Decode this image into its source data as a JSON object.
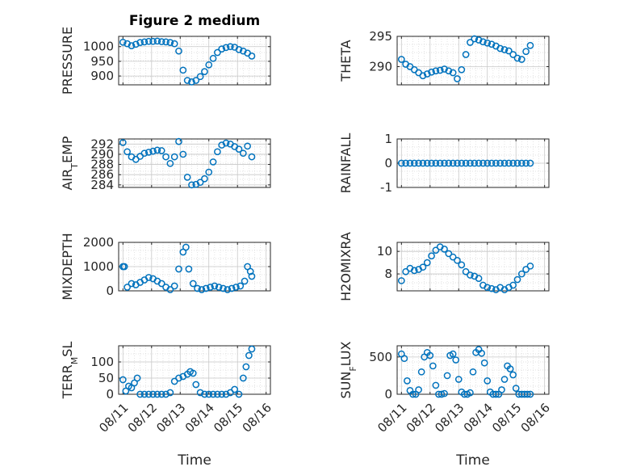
{
  "chart_data": [
    {
      "type": "scatter",
      "title": "Figure 2 medium",
      "ylabel": "PRESSURE",
      "ylim": [
        870,
        1035
      ],
      "yticks": [
        "900",
        "950",
        "1000"
      ],
      "xticks": [],
      "xlabel": "",
      "grid": "on",
      "series": [
        {
          "x": [
            11.0,
            11.15,
            11.3,
            11.45,
            11.6,
            11.75,
            11.9,
            12.05,
            12.2,
            12.35,
            12.5,
            12.65,
            12.8,
            12.95,
            13.1,
            13.25,
            13.4,
            13.55,
            13.7,
            13.85,
            14.0,
            14.15,
            14.3,
            14.45,
            14.6,
            14.75,
            14.9,
            15.05,
            15.2,
            15.35,
            15.5
          ],
          "y": [
            1015,
            1010,
            1003,
            1008,
            1014,
            1016,
            1018,
            1018,
            1019,
            1017,
            1016,
            1014,
            1010,
            985,
            920,
            885,
            880,
            885,
            898,
            915,
            938,
            960,
            980,
            992,
            997,
            1000,
            998,
            990,
            985,
            978,
            968
          ]
        }
      ]
    },
    {
      "type": "scatter",
      "ylabel": "THETA",
      "ylim": [
        287,
        295
      ],
      "yticks": [
        "290",
        "295"
      ],
      "xticks": [],
      "xlabel": "",
      "grid": "on",
      "series": [
        {
          "x": [
            11.0,
            11.15,
            11.3,
            11.45,
            11.6,
            11.75,
            11.9,
            12.05,
            12.2,
            12.35,
            12.5,
            12.65,
            12.8,
            12.95,
            13.1,
            13.25,
            13.4,
            13.55,
            13.7,
            13.85,
            14.0,
            14.15,
            14.3,
            14.45,
            14.6,
            14.75,
            14.9,
            15.05,
            15.2,
            15.35,
            15.5
          ],
          "y": [
            291.2,
            290.4,
            290.0,
            289.5,
            289.0,
            288.5,
            288.8,
            289.1,
            289.3,
            289.4,
            289.6,
            289.3,
            289.0,
            288.0,
            289.5,
            292.0,
            294.0,
            294.6,
            294.4,
            294.1,
            293.9,
            293.7,
            293.4,
            293.0,
            292.8,
            292.6,
            292.0,
            291.4,
            291.2,
            292.5,
            293.5
          ]
        }
      ]
    },
    {
      "type": "scatter",
      "ylabel": "AIR_TEMP",
      "ylim": [
        283.5,
        293
      ],
      "yticks": [
        "284",
        "286",
        "288",
        "290",
        "292"
      ],
      "xticks": [],
      "xlabel": "",
      "grid": "on",
      "series": [
        {
          "x": [
            11.0,
            11.15,
            11.3,
            11.45,
            11.6,
            11.75,
            11.9,
            12.05,
            12.2,
            12.35,
            12.5,
            12.65,
            12.8,
            12.95,
            13.1,
            13.25,
            13.4,
            13.55,
            13.7,
            13.85,
            14.0,
            14.15,
            14.3,
            14.45,
            14.6,
            14.75,
            14.9,
            15.05,
            15.2,
            15.35,
            15.5
          ],
          "y": [
            292.3,
            290.5,
            289.5,
            289.0,
            289.6,
            290.2,
            290.4,
            290.6,
            290.8,
            290.7,
            289.5,
            288.2,
            289.5,
            292.5,
            290.0,
            285.5,
            284.0,
            284.1,
            284.5,
            285.2,
            286.5,
            288.5,
            290.5,
            291.8,
            292.2,
            292.0,
            291.5,
            291.0,
            290.2,
            291.6,
            289.5
          ]
        }
      ]
    },
    {
      "type": "scatter",
      "ylabel": "RAINFALL",
      "ylim": [
        -1,
        1
      ],
      "yticks": [
        "-1",
        "0",
        "1"
      ],
      "xticks": [],
      "xlabel": "",
      "grid": "on",
      "series": [
        {
          "x": [
            11.0,
            11.15,
            11.3,
            11.45,
            11.6,
            11.75,
            11.9,
            12.05,
            12.2,
            12.35,
            12.5,
            12.65,
            12.8,
            12.95,
            13.1,
            13.25,
            13.4,
            13.55,
            13.7,
            13.85,
            14.0,
            14.15,
            14.3,
            14.45,
            14.6,
            14.75,
            14.9,
            15.05,
            15.2,
            15.35,
            15.5
          ],
          "y": [
            0,
            0,
            0,
            0,
            0,
            0,
            0,
            0,
            0,
            0,
            0,
            0,
            0,
            0,
            0,
            0,
            0,
            0,
            0,
            0,
            0,
            0,
            0,
            0,
            0,
            0,
            0,
            0,
            0,
            0,
            0
          ]
        }
      ]
    },
    {
      "type": "scatter",
      "ylabel": "MIXDEPTH",
      "ylim": [
        0,
        2000
      ],
      "yticks": [
        "0",
        "1000",
        "2000"
      ],
      "xticks": [],
      "xlabel": "",
      "grid": "on",
      "series": [
        {
          "x": [
            11.0,
            11.05,
            11.15,
            11.3,
            11.45,
            11.6,
            11.75,
            11.9,
            12.05,
            12.2,
            12.35,
            12.5,
            12.65,
            12.8,
            12.95,
            13.1,
            13.2,
            13.3,
            13.45,
            13.6,
            13.75,
            13.9,
            14.05,
            14.2,
            14.35,
            14.5,
            14.65,
            14.8,
            14.95,
            15.1,
            15.25,
            15.35,
            15.45,
            15.5
          ],
          "y": [
            1000,
            1000,
            150,
            300,
            250,
            350,
            450,
            550,
            500,
            400,
            300,
            150,
            50,
            200,
            900,
            1600,
            1800,
            900,
            300,
            100,
            50,
            100,
            150,
            200,
            150,
            100,
            50,
            100,
            150,
            200,
            400,
            1000,
            800,
            600
          ]
        }
      ]
    },
    {
      "type": "scatter",
      "ylabel": "H2OMIXRA",
      "ylim": [
        6.5,
        10.8
      ],
      "yticks": [
        "8",
        "10"
      ],
      "xticks": [],
      "xlabel": "",
      "grid": "on",
      "series": [
        {
          "x": [
            11.0,
            11.15,
            11.3,
            11.45,
            11.6,
            11.75,
            11.9,
            12.05,
            12.2,
            12.35,
            12.5,
            12.65,
            12.8,
            12.95,
            13.1,
            13.25,
            13.4,
            13.55,
            13.7,
            13.85,
            14.0,
            14.15,
            14.3,
            14.45,
            14.6,
            14.75,
            14.9,
            15.05,
            15.2,
            15.35,
            15.5
          ],
          "y": [
            7.4,
            8.2,
            8.5,
            8.3,
            8.4,
            8.6,
            9.0,
            9.6,
            10.1,
            10.4,
            10.2,
            9.8,
            9.5,
            9.2,
            8.8,
            8.2,
            7.9,
            7.8,
            7.6,
            7.0,
            6.8,
            6.7,
            6.6,
            6.8,
            6.6,
            6.8,
            7.0,
            7.5,
            8.0,
            8.4,
            8.7
          ]
        }
      ]
    },
    {
      "type": "scatter",
      "ylabel": "TERR_MSL",
      "ylim": [
        0,
        150
      ],
      "yticks": [
        "0",
        "50",
        "100"
      ],
      "xticks": [
        "08/11",
        "08/12",
        "08/13",
        "08/14",
        "08/15",
        "08/16"
      ],
      "xlabel": "Time",
      "grid": "on",
      "series": [
        {
          "x": [
            11.0,
            11.1,
            11.2,
            11.3,
            11.4,
            11.5,
            11.6,
            11.75,
            11.9,
            12.05,
            12.2,
            12.35,
            12.5,
            12.65,
            12.8,
            12.95,
            13.1,
            13.25,
            13.35,
            13.45,
            13.55,
            13.7,
            13.85,
            14.0,
            14.15,
            14.3,
            14.45,
            14.6,
            14.75,
            14.9,
            15.05,
            15.2,
            15.3,
            15.4,
            15.5
          ],
          "y": [
            45,
            10,
            25,
            20,
            35,
            50,
            0,
            0,
            0,
            0,
            0,
            0,
            0,
            5,
            40,
            50,
            55,
            62,
            70,
            65,
            30,
            5,
            0,
            0,
            0,
            0,
            0,
            0,
            5,
            15,
            0,
            50,
            85,
            120,
            140
          ]
        }
      ]
    },
    {
      "type": "scatter",
      "ylabel": "SUN_FLUX",
      "ylim": [
        0,
        650
      ],
      "yticks": [
        "0",
        "500"
      ],
      "xticks": [
        "08/11",
        "08/12",
        "08/13",
        "08/14",
        "08/15",
        "08/16"
      ],
      "xlabel": "Time",
      "grid": "on",
      "series": [
        {
          "x": [
            11.0,
            11.1,
            11.2,
            11.3,
            11.4,
            11.5,
            11.6,
            11.7,
            11.8,
            11.9,
            12.0,
            12.1,
            12.2,
            12.3,
            12.4,
            12.5,
            12.6,
            12.7,
            12.8,
            12.9,
            13.0,
            13.1,
            13.2,
            13.3,
            13.4,
            13.5,
            13.6,
            13.7,
            13.8,
            13.9,
            14.0,
            14.1,
            14.2,
            14.3,
            14.4,
            14.5,
            14.6,
            14.7,
            14.8,
            14.9,
            15.0,
            15.1,
            15.2,
            15.3,
            15.4,
            15.5
          ],
          "y": [
            540,
            480,
            180,
            50,
            0,
            0,
            60,
            300,
            500,
            560,
            520,
            380,
            120,
            0,
            0,
            10,
            250,
            520,
            540,
            460,
            200,
            30,
            0,
            0,
            20,
            300,
            560,
            600,
            550,
            420,
            180,
            30,
            0,
            0,
            0,
            60,
            200,
            380,
            340,
            260,
            80,
            0,
            0,
            0,
            0,
            0
          ]
        }
      ]
    }
  ]
}
